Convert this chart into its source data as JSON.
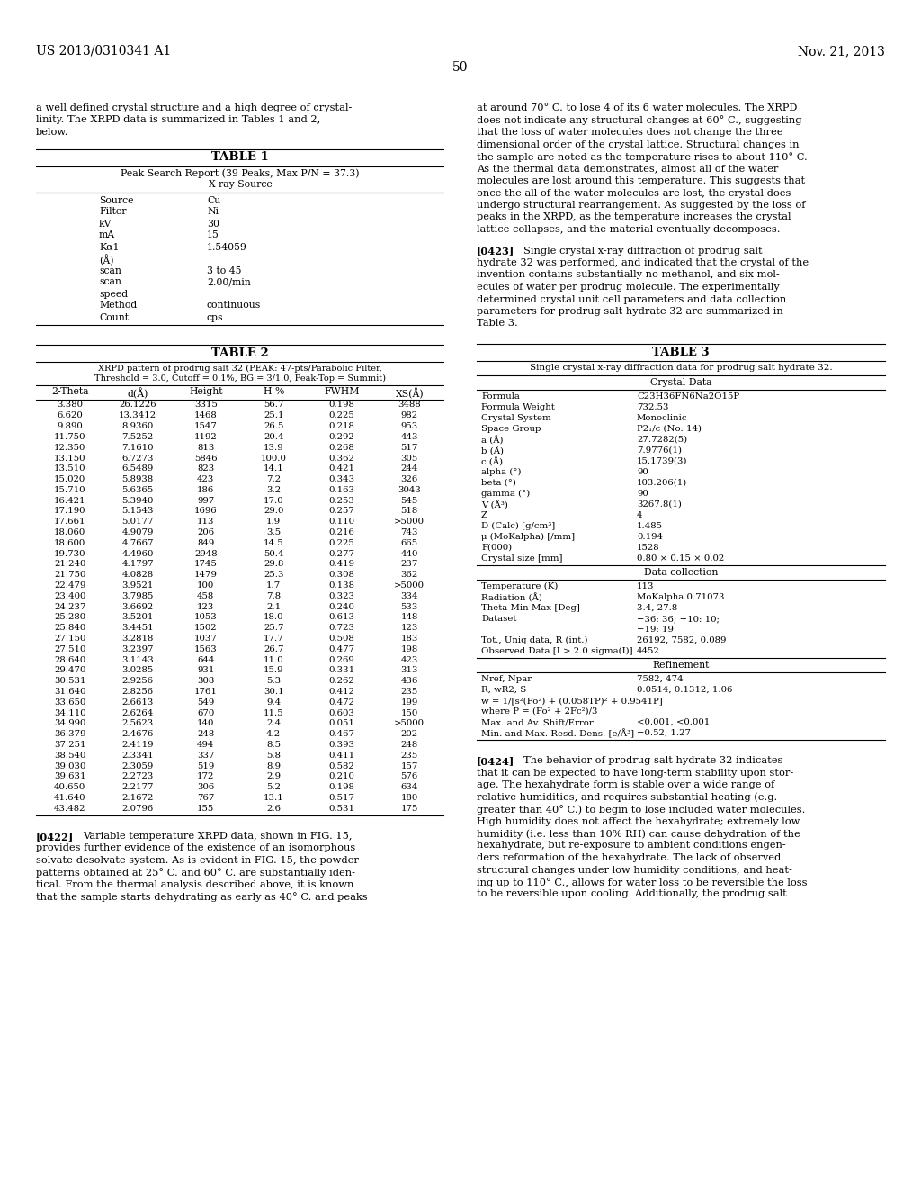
{
  "bg_color": "#ffffff",
  "header_left": "US 2013/0310341 A1",
  "header_right": "Nov. 21, 2013",
  "page_number": "50",
  "intro_left_lines": [
    "a well defined crystal structure and a high degree of crystal-",
    "linity. The XRPD data is summarized in Tables 1 and 2,",
    "below."
  ],
  "intro_right_lines": [
    "at around 70° C. to lose 4 of its 6 water molecules. The XRPD",
    "does not indicate any structural changes at 60° C., suggesting",
    "that the loss of water molecules does not change the three",
    "dimensional order of the crystal lattice. Structural changes in",
    "the sample are noted as the temperature rises to about 110° C.",
    "As the thermal data demonstrates, almost all of the water",
    "molecules are lost around this temperature. This suggests that",
    "once the all of the water molecules are lost, the crystal does",
    "undergo structural rearrangement. As suggested by the loss of",
    "peaks in the XRPD, as the temperature increases the crystal",
    "lattice collapses, and the material eventually decomposes."
  ],
  "para0423_lines": [
    "[0423]    Single crystal x-ray diffraction of prodrug salt",
    "hydrate 32 was performed, and indicated that the crystal of the",
    "invention contains substantially no methanol, and six mol-",
    "ecules of water per prodrug molecule. The experimentally",
    "determined crystal unit cell parameters and data collection",
    "parameters for prodrug salt hydrate 32 are summarized in",
    "Table 3."
  ],
  "para0424_lines": [
    "[0424]    The behavior of prodrug salt hydrate 32 indicates",
    "that it can be expected to have long-term stability upon stor-",
    "age. The hexahydrate form is stable over a wide range of",
    "relative humidities, and requires substantial heating (e.g.",
    "greater than 40° C.) to begin to lose included water molecules.",
    "High humidity does not affect the hexahydrate; extremely low",
    "humidity (i.e. less than 10% RH) can cause dehydration of the",
    "hexahydrate, but re-exposure to ambient conditions engen-",
    "ders reformation of the hexahydrate. The lack of observed",
    "structural changes under low humidity conditions, and heat-",
    "ing up to 110° C., allows for water loss to be reversible the loss",
    "to be reversible upon cooling. Additionally, the prodrug salt"
  ],
  "para0422_lines": [
    "[0422]    Variable temperature XRPD data, shown in FIG. 15,",
    "provides further evidence of the existence of an isomorphous",
    "solvate-desolvate system. As is evident in FIG. 15, the powder",
    "patterns obtained at 25° C. and 60° C. are substantially iden-",
    "tical. From the thermal analysis described above, it is known",
    "that the sample starts dehydrating as early as 40° C. and peaks"
  ],
  "table1_title": "TABLE 1",
  "table1_sub1": "Peak Search Report (39 Peaks, Max P/N = 37.3)",
  "table1_sub2": "X-ray Source",
  "table1_rows": [
    [
      "Source",
      "Cu"
    ],
    [
      "Filter",
      "Ni"
    ],
    [
      "kV",
      "30"
    ],
    [
      "mA",
      "15"
    ],
    [
      "Kα1",
      "1.54059"
    ],
    [
      "(Å)",
      ""
    ],
    [
      "scan",
      "3 to 45"
    ],
    [
      "scan",
      "2.00/min"
    ],
    [
      "speed",
      ""
    ],
    [
      "Method",
      "continuous"
    ],
    [
      "Count",
      "cps"
    ]
  ],
  "table2_title": "TABLE 2",
  "table2_sub1": "XRPD pattern of prodrug salt 32 (PEAK: 47-pts/Parabolic Filter,",
  "table2_sub2": "Threshold = 3.0, Cutoff = 0.1%, BG = 3/1.0, Peak-Top = Summit)",
  "table2_headers": [
    "2-Theta",
    "d(Å)",
    "Height",
    "H %",
    "FWHM",
    "XS(Å)"
  ],
  "table2_rows": [
    [
      "3.380",
      "26.1226",
      "3315",
      "56.7",
      "0.198",
      "3488"
    ],
    [
      "6.620",
      "13.3412",
      "1468",
      "25.1",
      "0.225",
      "982"
    ],
    [
      "9.890",
      "8.9360",
      "1547",
      "26.5",
      "0.218",
      "953"
    ],
    [
      "11.750",
      "7.5252",
      "1192",
      "20.4",
      "0.292",
      "443"
    ],
    [
      "12.350",
      "7.1610",
      "813",
      "13.9",
      "0.268",
      "517"
    ],
    [
      "13.150",
      "6.7273",
      "5846",
      "100.0",
      "0.362",
      "305"
    ],
    [
      "13.510",
      "6.5489",
      "823",
      "14.1",
      "0.421",
      "244"
    ],
    [
      "15.020",
      "5.8938",
      "423",
      "7.2",
      "0.343",
      "326"
    ],
    [
      "15.710",
      "5.6365",
      "186",
      "3.2",
      "0.163",
      "3043"
    ],
    [
      "16.421",
      "5.3940",
      "997",
      "17.0",
      "0.253",
      "545"
    ],
    [
      "17.190",
      "5.1543",
      "1696",
      "29.0",
      "0.257",
      "518"
    ],
    [
      "17.661",
      "5.0177",
      "113",
      "1.9",
      "0.110",
      ">5000"
    ],
    [
      "18.060",
      "4.9079",
      "206",
      "3.5",
      "0.216",
      "743"
    ],
    [
      "18.600",
      "4.7667",
      "849",
      "14.5",
      "0.225",
      "665"
    ],
    [
      "19.730",
      "4.4960",
      "2948",
      "50.4",
      "0.277",
      "440"
    ],
    [
      "21.240",
      "4.1797",
      "1745",
      "29.8",
      "0.419",
      "237"
    ],
    [
      "21.750",
      "4.0828",
      "1479",
      "25.3",
      "0.308",
      "362"
    ],
    [
      "22.479",
      "3.9521",
      "100",
      "1.7",
      "0.138",
      ">5000"
    ],
    [
      "23.400",
      "3.7985",
      "458",
      "7.8",
      "0.323",
      "334"
    ],
    [
      "24.237",
      "3.6692",
      "123",
      "2.1",
      "0.240",
      "533"
    ],
    [
      "25.280",
      "3.5201",
      "1053",
      "18.0",
      "0.613",
      "148"
    ],
    [
      "25.840",
      "3.4451",
      "1502",
      "25.7",
      "0.723",
      "123"
    ],
    [
      "27.150",
      "3.2818",
      "1037",
      "17.7",
      "0.508",
      "183"
    ],
    [
      "27.510",
      "3.2397",
      "1563",
      "26.7",
      "0.477",
      "198"
    ],
    [
      "28.640",
      "3.1143",
      "644",
      "11.0",
      "0.269",
      "423"
    ],
    [
      "29.470",
      "3.0285",
      "931",
      "15.9",
      "0.331",
      "313"
    ],
    [
      "30.531",
      "2.9256",
      "308",
      "5.3",
      "0.262",
      "436"
    ],
    [
      "31.640",
      "2.8256",
      "1761",
      "30.1",
      "0.412",
      "235"
    ],
    [
      "33.650",
      "2.6613",
      "549",
      "9.4",
      "0.472",
      "199"
    ],
    [
      "34.110",
      "2.6264",
      "670",
      "11.5",
      "0.603",
      "150"
    ],
    [
      "34.990",
      "2.5623",
      "140",
      "2.4",
      "0.051",
      ">5000"
    ],
    [
      "36.379",
      "2.4676",
      "248",
      "4.2",
      "0.467",
      "202"
    ],
    [
      "37.251",
      "2.4119",
      "494",
      "8.5",
      "0.393",
      "248"
    ],
    [
      "38.540",
      "2.3341",
      "337",
      "5.8",
      "0.411",
      "235"
    ],
    [
      "39.030",
      "2.3059",
      "519",
      "8.9",
      "0.582",
      "157"
    ],
    [
      "39.631",
      "2.2723",
      "172",
      "2.9",
      "0.210",
      "576"
    ],
    [
      "40.650",
      "2.2177",
      "306",
      "5.2",
      "0.198",
      "634"
    ],
    [
      "41.640",
      "2.1672",
      "767",
      "13.1",
      "0.517",
      "180"
    ],
    [
      "43.482",
      "2.0796",
      "155",
      "2.6",
      "0.531",
      "175"
    ]
  ],
  "table3_title": "TABLE 3",
  "table3_subtitle": "Single crystal x-ray diffraction data for prodrug salt hydrate 32.",
  "table3_section1": "Crystal Data",
  "table3_crystal_rows": [
    [
      "Formula",
      "C23H36FN6Na2O15P"
    ],
    [
      "Formula Weight",
      "732.53"
    ],
    [
      "Crystal System",
      "Monoclinic"
    ],
    [
      "Space Group",
      "P2₁/c (No. 14)"
    ],
    [
      "a (Å)",
      "27.7282(5)"
    ],
    [
      "b (Å)",
      "7.9776(1)"
    ],
    [
      "c (Å)",
      "15.1739(3)"
    ],
    [
      "alpha (°)",
      "90"
    ],
    [
      "beta (°)",
      "103.206(1)"
    ],
    [
      "gamma (°)",
      "90"
    ],
    [
      "V (Å³)",
      "3267.8(1)"
    ],
    [
      "Z",
      "4"
    ],
    [
      "D (Calc) [g/cm³]",
      "1.485"
    ],
    [
      "μ (MoKalpha) [/mm]",
      "0.194"
    ],
    [
      "F(000)",
      "1528"
    ],
    [
      "Crystal size [mm]",
      "0.80 × 0.15 × 0.02"
    ]
  ],
  "table3_section2": "Data collection",
  "table3_datacoll_rows": [
    [
      "Temperature (K)",
      "113"
    ],
    [
      "Radiation (Å)",
      "MoKalpha 0.71073"
    ],
    [
      "Theta Min-Max [Deg]",
      "3.4, 27.8"
    ],
    [
      "Dataset",
      "−36: 36; −10: 10;",
      "−19: 19"
    ],
    [
      "Tot., Uniq data, R (int.)",
      "26192, 7582, 0.089"
    ],
    [
      "Observed Data [I > 2.0 sigma(I)]",
      "4452"
    ]
  ],
  "table3_section3": "Refinement",
  "table3_refine_rows": [
    [
      "Nref, Npar",
      "7582, 474"
    ],
    [
      "R, wR2, S",
      "0.0514, 0.1312, 1.06"
    ],
    [
      "w = 1/[s²(Fo²) + (0.058TP)² + 0.9541P]",
      ""
    ],
    [
      "where P = (Fo² + 2Fc²)/3",
      ""
    ],
    [
      "Max. and Av. Shift/Error",
      "<0.001, <0.001"
    ],
    [
      "Min. and Max. Resd. Dens. [e/Å³]",
      "−0.52, 1.27"
    ]
  ]
}
